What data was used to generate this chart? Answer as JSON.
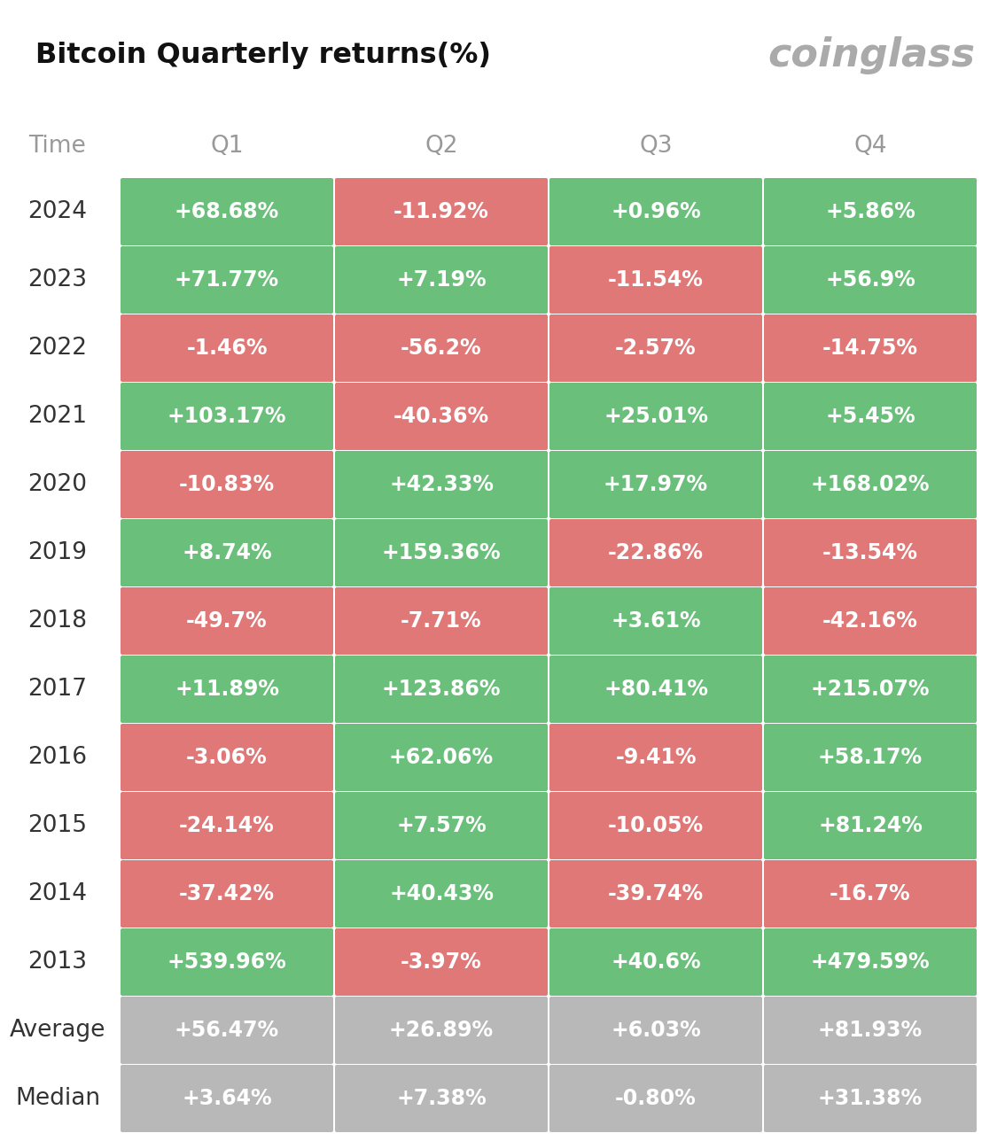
{
  "title": "Bitcoin Quarterly returns(%)",
  "brand": "coinglass",
  "background_color": "#ffffff",
  "green_color": "#6abf7b",
  "red_color": "#e07878",
  "gray_color": "#b8b8b8",
  "text_color_white": "#ffffff",
  "text_color_dark": "#333333",
  "header_color": "#999999",
  "years": [
    "2024",
    "2023",
    "2022",
    "2021",
    "2020",
    "2019",
    "2018",
    "2017",
    "2016",
    "2015",
    "2014",
    "2013",
    "Average",
    "Median"
  ],
  "quarters": [
    "Q1",
    "Q2",
    "Q3",
    "Q4"
  ],
  "data": {
    "2024": [
      "+68.68%",
      "-11.92%",
      "+0.96%",
      "+5.86%"
    ],
    "2023": [
      "+71.77%",
      "+7.19%",
      "-11.54%",
      "+56.9%"
    ],
    "2022": [
      "-1.46%",
      "-56.2%",
      "-2.57%",
      "-14.75%"
    ],
    "2021": [
      "+103.17%",
      "-40.36%",
      "+25.01%",
      "+5.45%"
    ],
    "2020": [
      "-10.83%",
      "+42.33%",
      "+17.97%",
      "+168.02%"
    ],
    "2019": [
      "+8.74%",
      "+159.36%",
      "-22.86%",
      "-13.54%"
    ],
    "2018": [
      "-49.7%",
      "-7.71%",
      "+3.61%",
      "-42.16%"
    ],
    "2017": [
      "+11.89%",
      "+123.86%",
      "+80.41%",
      "+215.07%"
    ],
    "2016": [
      "-3.06%",
      "+62.06%",
      "-9.41%",
      "+58.17%"
    ],
    "2015": [
      "-24.14%",
      "+7.57%",
      "-10.05%",
      "+81.24%"
    ],
    "2014": [
      "-37.42%",
      "+40.43%",
      "-39.74%",
      "-16.7%"
    ],
    "2013": [
      "+539.96%",
      "-3.97%",
      "+40.6%",
      "+479.59%"
    ],
    "Average": [
      "+56.47%",
      "+26.89%",
      "+6.03%",
      "+81.93%"
    ],
    "Median": [
      "+3.64%",
      "+7.38%",
      "-0.80%",
      "+31.38%"
    ]
  },
  "title_fontsize": 23,
  "brand_fontsize": 32,
  "header_fontsize": 19,
  "cell_fontsize": 17,
  "year_fontsize": 19
}
